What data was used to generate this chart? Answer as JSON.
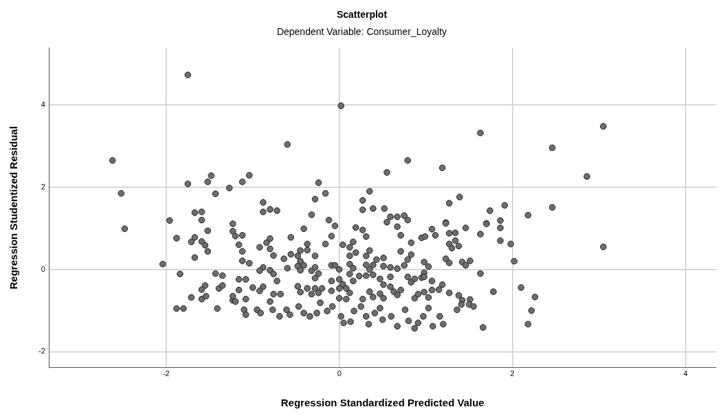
{
  "chart_data": {
    "type": "scatter",
    "title": "Scatterplot",
    "subtitle": "Dependent Variable: Consumer_Loyalty",
    "xlabel": "Regression Standardized Predicted Value",
    "ylabel": "Regression Studentized Residual",
    "xlim": [
      -3.35,
      4.35
    ],
    "ylim": [
      -2.39,
      5.39
    ],
    "xticks": [
      -2,
      0,
      2,
      4
    ],
    "yticks": [
      -2,
      0,
      2,
      4
    ],
    "grid": true,
    "marker": "circle",
    "legend": false,
    "series": [
      {
        "color": "#6e6e6e",
        "x": [
          -2.62,
          -2.52,
          -2.48,
          -2.04,
          -1.96,
          -1.75,
          0.02,
          -0.6,
          1.63,
          3.05,
          2.46,
          2.86,
          2.46,
          2.18,
          3.05,
          1.98,
          2.02,
          2.1,
          2.26,
          2.22,
          2.18,
          1.66,
          -1.75,
          -1.48,
          -1.52,
          -1.43,
          -1.27,
          -1.12,
          -1.04,
          -0.88,
          -0.88,
          -0.8,
          -0.72,
          -0.24,
          -0.16,
          -0.28,
          -0.32,
          -0.12,
          -0.05,
          -1.67,
          -1.59,
          -1.59,
          -1.23,
          0.55,
          0.79,
          1.19,
          0.35,
          0.27,
          0.27,
          0.39,
          0.52,
          0.59,
          0.67,
          0.75,
          0.79,
          0.55,
          1.27,
          1.39,
          1.74,
          1.91,
          1.86,
          1.7,
          1.23,
          -1.88,
          -1.67,
          -1.71,
          -1.59,
          -1.55,
          -1.52,
          -1.52,
          -1.67,
          -1.84,
          -1.43,
          -1.35,
          -1.55,
          -1.59,
          -1.71,
          -1.59,
          -1.39,
          -1.35,
          -1.23,
          -1.2,
          -1.12,
          -1.16,
          -1.12,
          -1.12,
          -1.04,
          -1.16,
          -1.08,
          -1.16,
          -1.0,
          -1.08,
          -1.23,
          -0.92,
          -0.84,
          -0.8,
          -0.8,
          -0.76,
          -0.88,
          -0.92,
          -0.8,
          -0.76,
          -0.72,
          -0.88,
          -0.92,
          -0.76,
          -0.68,
          -0.64,
          -0.6,
          -0.56,
          -0.56,
          -0.48,
          -0.45,
          -0.41,
          -0.37,
          -0.37,
          -0.45,
          -0.48,
          -0.45,
          -0.41,
          -0.28,
          -0.32,
          -0.28,
          -0.24,
          -0.28,
          -0.48,
          -0.45,
          -0.37,
          -0.28,
          -0.2,
          -0.24,
          -0.32,
          -0.16,
          -0.09,
          0.04,
          0.12,
          0.12,
          -0.09,
          -0.05,
          0.0,
          0.12,
          -0.09,
          0.0,
          0.04,
          0.0,
          -0.09,
          0.08,
          0.12,
          0.0,
          0.08,
          0.12,
          0.19,
          0.27,
          0.31,
          0.67,
          0.71,
          0.83,
          0.95,
          0.99,
          1.07,
          1.11,
          1.23,
          1.27,
          1.34,
          1.46,
          1.34,
          1.27,
          1.3,
          1.38,
          1.63,
          1.7,
          1.86,
          1.86,
          1.63,
          1.78,
          1.23,
          1.27,
          1.42,
          1.51,
          1.46,
          0.98,
          1.03,
          0.98,
          0.95,
          0.98,
          1.07,
          1.19,
          1.15,
          1.07,
          1.27,
          1.38,
          1.42,
          1.51,
          0.83,
          0.79,
          0.75,
          0.71,
          0.67,
          0.59,
          0.51,
          0.51,
          0.43,
          0.39,
          0.31,
          0.35,
          0.35,
          0.31,
          0.16,
          0.19,
          0.16,
          0.16,
          0.23,
          0.31,
          0.39,
          0.47,
          0.51,
          0.59,
          0.59,
          0.63,
          0.71,
          0.67,
          0.79,
          0.83,
          0.87,
          0.35,
          0.39,
          0.47,
          0.51,
          0.27,
          0.87,
          0.91,
          0.98,
          1.03,
          -1.88,
          -1.8,
          -1.41,
          -1.54,
          -1.23,
          -1.2,
          -1.1,
          -1.08,
          -0.95,
          -0.91,
          -0.8,
          -0.77,
          -0.69,
          -0.61,
          -0.57,
          -0.47,
          -0.41,
          -0.34,
          -0.26,
          -0.22,
          -0.14,
          -0.08,
          0.02,
          0.05,
          0.13,
          0.17,
          0.25,
          0.31,
          0.34,
          0.41,
          0.47,
          0.5,
          0.6,
          0.67,
          0.76,
          0.8,
          0.87,
          0.91,
          0.97,
          1.03,
          1.08,
          1.16,
          1.2,
          1.36,
          1.41,
          1.5,
          1.55
        ],
        "values": [
          2.65,
          1.85,
          0.99,
          0.13,
          1.19,
          4.73,
          3.98,
          3.04,
          3.32,
          3.48,
          2.96,
          2.26,
          1.51,
          1.32,
          0.55,
          0.62,
          0.2,
          -0.44,
          -0.67,
          -1.0,
          -1.33,
          -1.41,
          2.08,
          2.28,
          2.13,
          1.84,
          1.98,
          2.13,
          2.29,
          1.63,
          1.4,
          1.46,
          1.43,
          2.11,
          1.85,
          1.71,
          1.33,
          1.2,
          1.06,
          1.38,
          1.4,
          1.2,
          1.11,
          2.36,
          2.65,
          2.47,
          1.9,
          1.68,
          1.45,
          1.48,
          1.48,
          1.28,
          1.28,
          1.31,
          1.2,
          1.15,
          1.61,
          1.76,
          1.43,
          1.56,
          1.19,
          1.12,
          1.14,
          0.76,
          0.78,
          0.67,
          0.68,
          0.59,
          0.44,
          0.94,
          0.29,
          -0.11,
          -0.1,
          -0.15,
          -0.39,
          -0.49,
          -0.68,
          -0.72,
          -0.46,
          -0.39,
          0.93,
          0.81,
          0.83,
          0.6,
          0.44,
          0.21,
          0.15,
          -0.24,
          -0.24,
          -0.5,
          -0.44,
          -0.72,
          -0.75,
          0.54,
          0.65,
          0.75,
          0.5,
          0.34,
          0.05,
          -0.03,
          -0.02,
          -0.11,
          -0.28,
          -0.42,
          -0.52,
          -0.6,
          -0.6,
          0.26,
          0.03,
          0.78,
          0.37,
          0.33,
          0.46,
          0.99,
          0.62,
          0.47,
          0.2,
          0.08,
          -0.02,
          0.1,
          0.33,
          -0.03,
          0.05,
          -0.1,
          -0.21,
          -0.41,
          -0.55,
          -0.46,
          -0.46,
          -0.46,
          -0.57,
          -0.6,
          0.62,
          0.81,
          0.6,
          0.33,
          0.13,
          0.1,
          0.1,
          0.0,
          -0.11,
          -0.28,
          -0.24,
          -0.36,
          -0.46,
          -0.52,
          -0.46,
          -0.57,
          -0.7,
          -0.72,
          0.54,
          1.02,
          0.96,
          0.8,
          1.04,
          0.83,
          0.65,
          0.77,
          0.8,
          0.98,
          0.83,
          1.12,
          0.88,
          0.89,
          1.01,
          0.7,
          0.62,
          0.52,
          0.57,
          0.86,
          1.11,
          1.01,
          0.7,
          -0.1,
          -0.54,
          0.26,
          0.16,
          0.18,
          0.21,
          0.1,
          0.18,
          0.07,
          -0.08,
          -0.2,
          -0.18,
          -0.28,
          -0.37,
          -0.49,
          -0.5,
          -0.57,
          -0.63,
          -0.75,
          -0.73,
          0.36,
          0.24,
          0.1,
          0.44,
          0.02,
          0.05,
          0.08,
          0.28,
          0.24,
          0.11,
          0.33,
          0.46,
          0.0,
          0.11,
          0.67,
          0.41,
          0.03,
          -0.28,
          -0.16,
          -0.15,
          -0.13,
          -0.23,
          -0.37,
          -0.18,
          -0.42,
          -0.54,
          -0.5,
          -0.62,
          -0.18,
          -0.31,
          -0.23,
          -0.54,
          -0.67,
          -0.59,
          -0.7,
          -0.72,
          -0.7,
          -0.6,
          -0.55,
          -0.68,
          -0.95,
          -0.95,
          -0.95,
          -0.65,
          -0.65,
          -0.78,
          -0.98,
          -1.1,
          -0.98,
          -1.06,
          -0.78,
          -0.98,
          -1.14,
          -0.98,
          -1.1,
          -0.9,
          -1.06,
          -1.14,
          -1.06,
          -0.81,
          -1.01,
          -0.9,
          -1.14,
          -1.3,
          -1.27,
          -1.01,
          -0.9,
          -1.14,
          -1.33,
          -1.06,
          -0.94,
          -1.22,
          -1.14,
          -1.38,
          -0.98,
          -1.25,
          -1.43,
          -1.3,
          -1.14,
          -0.94,
          -1.38,
          -1.14,
          -1.33,
          -0.98,
          -0.85,
          -0.85,
          -0.9
        ]
      }
    ]
  }
}
